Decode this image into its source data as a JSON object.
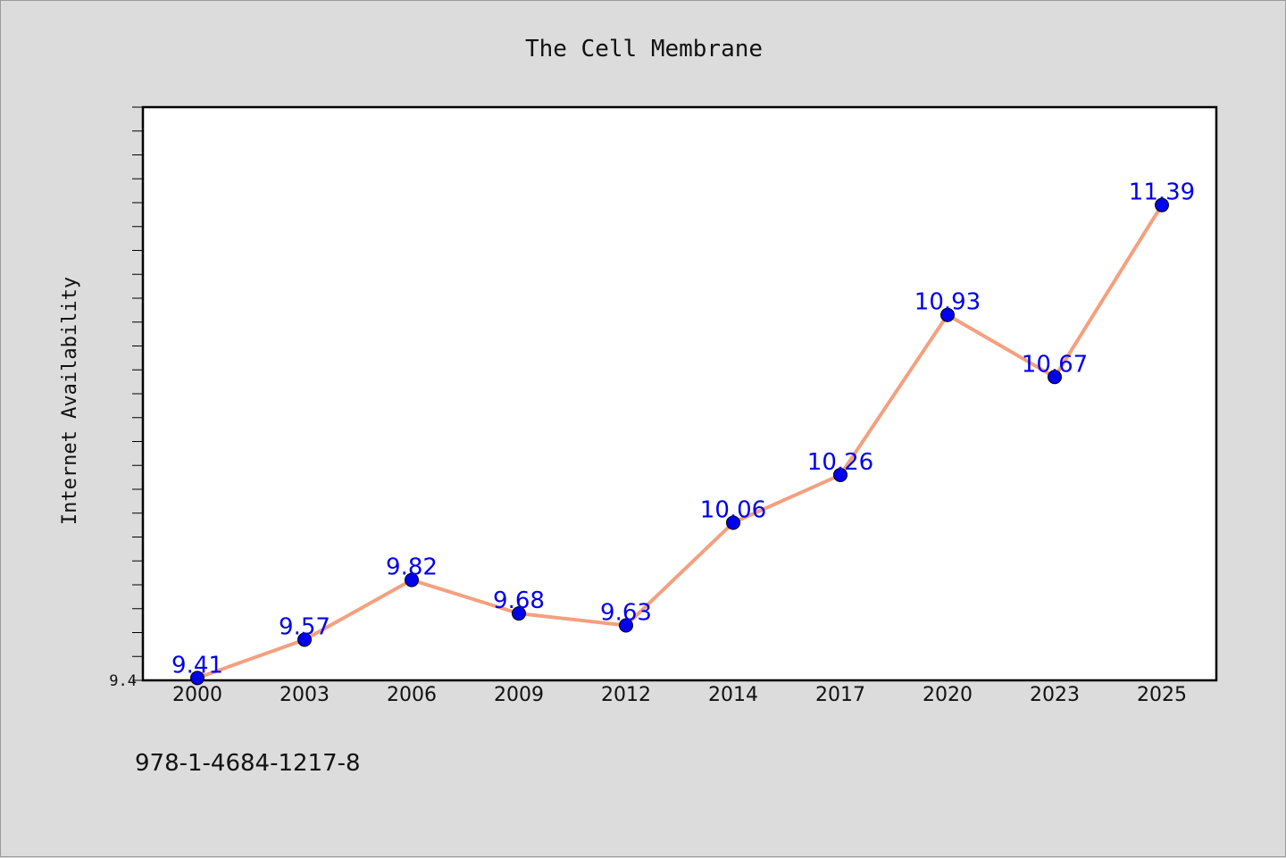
{
  "chart_data": {
    "type": "line",
    "title": "The Cell Membrane",
    "xlabel": "",
    "ylabel": "Internet Availability",
    "categories": [
      "2000",
      "2003",
      "2006",
      "2009",
      "2012",
      "2014",
      "2017",
      "2020",
      "2023",
      "2025"
    ],
    "series": [
      {
        "values": [
          9.41,
          9.57,
          9.82,
          9.68,
          9.63,
          10.06,
          10.26,
          10.93,
          10.67,
          11.39
        ],
        "data_labels": [
          "9.41",
          "9.57",
          "9.82",
          "9.68",
          "9.63",
          "10.06",
          "10.26",
          "10.93",
          "10.67",
          "11.39"
        ]
      }
    ],
    "ylim": [
      9.4,
      11.8
    ],
    "yticks_labeled": [
      "9.4"
    ],
    "grid": false,
    "legend": "none",
    "line_color": "#f4a07e",
    "marker_color": "#0000ee",
    "label_color": "#0000ee"
  },
  "footer": {
    "isbn": "978-1-4684-1217-8"
  }
}
